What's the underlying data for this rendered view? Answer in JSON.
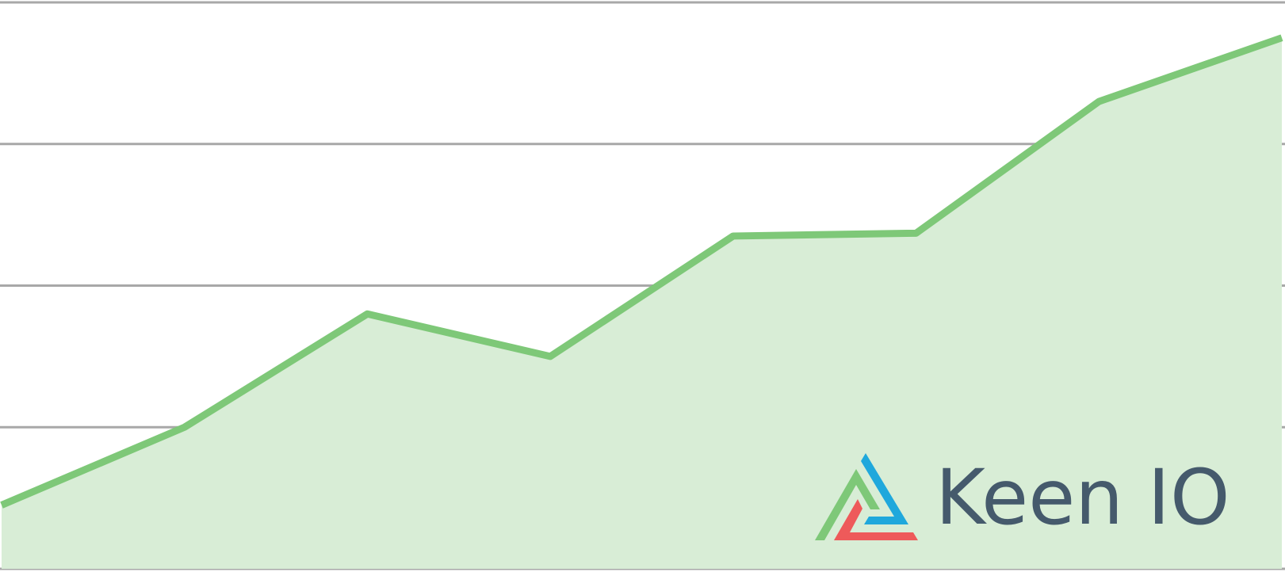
{
  "chart_data": {
    "type": "area",
    "title": "",
    "xlabel": "",
    "ylabel": "",
    "ylim": [
      0,
      4
    ],
    "grid": true,
    "legend": "none",
    "x": [
      0,
      1,
      2,
      3,
      4,
      5,
      6,
      7
    ],
    "series": [
      {
        "values": [
          0.45,
          1.0,
          1.8,
          1.5,
          2.35,
          2.37,
          3.3,
          3.75
        ]
      }
    ]
  },
  "colors": {
    "line": "#7ec878",
    "fill": "#d8edd6",
    "grid": "#a8a8a8",
    "logo_green": "#7ec878",
    "logo_blue": "#1fa8dc",
    "logo_red": "#ee5a5a",
    "brand_text": "#455a6c"
  },
  "brand": {
    "name": "Keen IO",
    "logo_icon": "keen-triangle-logo"
  }
}
